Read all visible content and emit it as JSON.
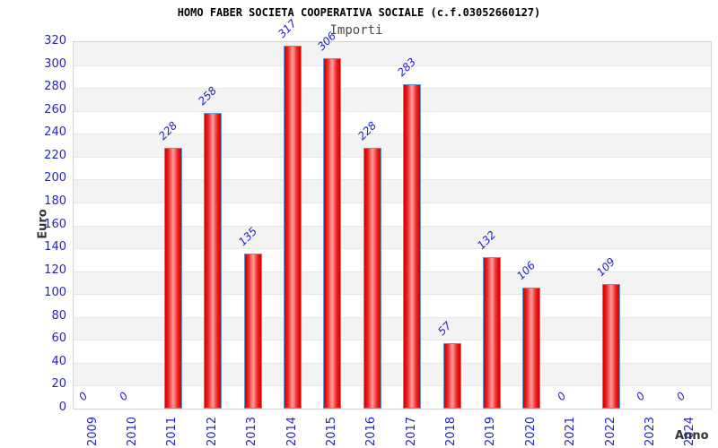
{
  "title": "HOMO FABER SOCIETA COOPERATIVA SOCIALE (c.f.03052660127)",
  "subtitle": "Importi",
  "chart_data": {
    "type": "bar",
    "title": "HOMO FABER SOCIETA COOPERATIVA SOCIALE (c.f.03052660127)",
    "subtitle": "Importi",
    "categories": [
      "2009",
      "2010",
      "2011",
      "2012",
      "2013",
      "2014",
      "2015",
      "2016",
      "2017",
      "2018",
      "2019",
      "2020",
      "2021",
      "2022",
      "2023",
      "2024"
    ],
    "values": [
      0,
      0,
      228,
      258,
      135,
      317,
      306,
      228,
      283,
      57,
      132,
      106,
      0,
      109,
      0,
      0
    ],
    "data_labels_shown": true,
    "xlabel": "Anno",
    "ylabel": "Euro",
    "ylim": [
      0,
      320
    ],
    "ytick_step": 20,
    "yticks": [
      0,
      20,
      40,
      60,
      80,
      100,
      120,
      140,
      160,
      180,
      200,
      220,
      240,
      260,
      280,
      300,
      320
    ],
    "legend": "none",
    "grid": "alternating horizontal bands every 20 units",
    "colors": {
      "bar_fill_dark": "#cf0000",
      "bar_fill_light": "#ffa0a0",
      "bar_border": "#5b9bd5",
      "tick_label": "#2222cc",
      "data_label": "#2222cc",
      "band_gray": "#f3f3f3",
      "gridline": "#e7e7e7",
      "plot_border": "#d4d4d4",
      "title_color": "#000000",
      "subtitle_color": "#4a4a4a",
      "axis_title_color": "#333333",
      "background": "#ffffff"
    }
  }
}
